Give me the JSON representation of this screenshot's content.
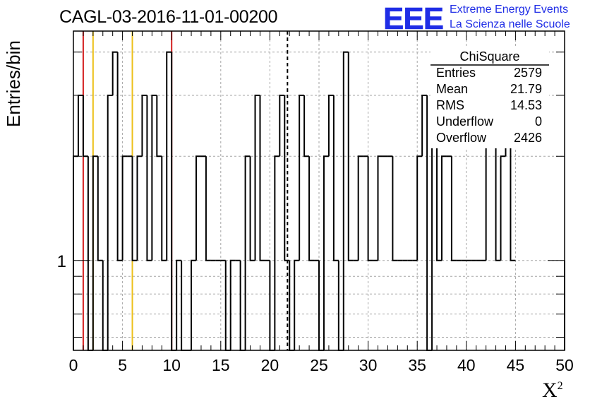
{
  "header": {
    "run_title": "CAGL-03-2016-11-01-00200",
    "logo_text": "EEE",
    "logo_line1": "Extreme Energy Events",
    "logo_line2": "La Scienza nelle Scuole",
    "logo_color": "#1f2de6"
  },
  "stats_box": {
    "title": "ChiSquare",
    "rows": [
      {
        "label": "Entries",
        "value": "2579"
      },
      {
        "label": "Mean",
        "value": "21.79"
      },
      {
        "label": "RMS",
        "value": "14.53"
      },
      {
        "label": "Underflow",
        "value": "0"
      },
      {
        "label": "Overflow",
        "value": "2426"
      }
    ]
  },
  "chart_data": {
    "type": "histogram",
    "title": "CAGL-03-2016-11-01-00200",
    "xlabel": "X",
    "xlabel_superscript": "2",
    "ylabel": "Entries/bin",
    "xlim": [
      0,
      50
    ],
    "ylim": [
      0.55,
      4.6
    ],
    "yscale": "log",
    "grid": true,
    "bin_width": 0.5,
    "x_ticks": [
      0,
      5,
      10,
      15,
      20,
      25,
      30,
      35,
      40,
      45,
      50
    ],
    "y_tick_labels": [
      {
        "value": 1,
        "label": "1"
      }
    ],
    "bin_values": [
      2,
      3,
      2,
      0,
      2,
      1,
      0,
      3,
      4,
      1,
      2,
      2,
      1,
      2,
      3,
      1,
      3,
      2,
      1,
      4,
      0,
      1,
      0,
      0,
      1,
      2,
      2,
      1,
      1,
      1,
      1,
      0,
      1,
      1,
      0,
      2,
      1,
      3,
      1,
      1,
      0,
      2,
      3,
      1,
      0,
      1,
      3,
      2,
      1,
      1,
      0,
      2,
      3,
      1,
      0,
      4,
      1,
      1,
      2,
      2,
      1,
      1,
      2,
      2,
      2,
      1,
      1,
      1,
      1,
      1,
      2,
      3,
      0,
      3,
      1,
      2,
      2,
      1,
      1,
      1,
      1,
      1,
      1,
      1,
      4,
      3,
      1,
      2,
      3,
      1
    ],
    "reference_lines": [
      {
        "x": 1,
        "color": "#d42020",
        "style": "solid"
      },
      {
        "x": 2,
        "color": "#ecc019",
        "style": "solid"
      },
      {
        "x": 6,
        "color": "#ecc019",
        "style": "solid"
      },
      {
        "x": 10,
        "color": "#d42020",
        "style": "solid"
      },
      {
        "x": 21.79,
        "color": "#000000",
        "style": "dashed"
      }
    ]
  }
}
